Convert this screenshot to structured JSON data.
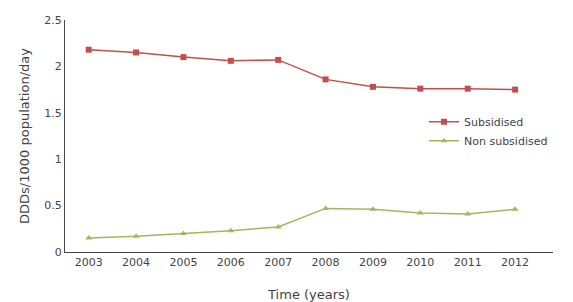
{
  "chart_data": {
    "type": "line",
    "xlabel": "Time (years)",
    "ylabel": "DDDs/1000 population/day",
    "x": [
      2003,
      2004,
      2005,
      2006,
      2007,
      2008,
      2009,
      2010,
      2011,
      2012
    ],
    "series": [
      {
        "name": "Subsidised",
        "color": "#C0504D",
        "marker": "square",
        "line_style": "solid",
        "values": [
          2.18,
          2.15,
          2.1,
          2.06,
          2.07,
          1.86,
          1.78,
          1.76,
          1.76,
          1.75
        ]
      },
      {
        "name": "Non subsidised",
        "color": "#9BBB59",
        "marker": "triangle-up",
        "line_style": "solid",
        "values": [
          0.15,
          0.17,
          0.2,
          0.23,
          0.27,
          0.47,
          0.46,
          0.42,
          0.41,
          0.46
        ]
      }
    ],
    "xlim": [
      2002.5,
      2012.8
    ],
    "xticks": [
      2003,
      2004,
      2005,
      2006,
      2007,
      2008,
      2009,
      2010,
      2011,
      2012
    ],
    "ylim": [
      0,
      2.5
    ],
    "yticks": [
      0,
      0.5,
      1,
      1.5,
      2,
      2.5
    ],
    "grid": false,
    "legend": "right"
  }
}
